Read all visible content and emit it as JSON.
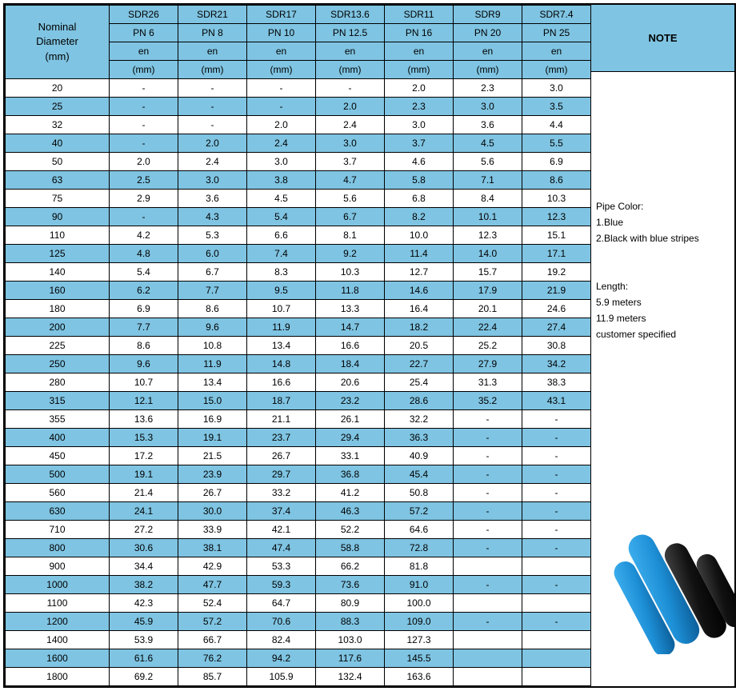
{
  "colors": {
    "header_bg": "#7fc4e2",
    "border": "#000000",
    "text": "#000000",
    "row_alt_bg": "#7fc4e2",
    "row_bg": "#ffffff"
  },
  "header": {
    "nominal_line1": "Nominal",
    "nominal_line2": "Diameter",
    "nominal_line3": "(mm)",
    "cols": [
      {
        "sdr": "SDR26",
        "pn": "PN 6",
        "en": "en",
        "unit": "(mm)"
      },
      {
        "sdr": "SDR21",
        "pn": "PN 8",
        "en": "en",
        "unit": "(mm)"
      },
      {
        "sdr": "SDR17",
        "pn": "PN 10",
        "en": "en",
        "unit": "(mm)"
      },
      {
        "sdr": "SDR13.6",
        "pn": "PN 12.5",
        "en": "en",
        "unit": "(mm)"
      },
      {
        "sdr": "SDR11",
        "pn": "PN 16",
        "en": "en",
        "unit": "(mm)"
      },
      {
        "sdr": "SDR9",
        "pn": "PN 20",
        "en": "en",
        "unit": "(mm)"
      },
      {
        "sdr": "SDR7.4",
        "pn": "PN 25",
        "en": "en",
        "unit": "(mm)"
      }
    ],
    "note_label": "NOTE"
  },
  "rows": [
    {
      "nom": "20",
      "v": [
        "-",
        "-",
        "-",
        "-",
        "2.0",
        "2.3",
        "3.0"
      ],
      "blue": false
    },
    {
      "nom": "25",
      "v": [
        "-",
        "-",
        "-",
        "2.0",
        "2.3",
        "3.0",
        "3.5"
      ],
      "blue": true
    },
    {
      "nom": "32",
      "v": [
        "-",
        "-",
        "2.0",
        "2.4",
        "3.0",
        "3.6",
        "4.4"
      ],
      "blue": false
    },
    {
      "nom": "40",
      "v": [
        "-",
        "2.0",
        "2.4",
        "3.0",
        "3.7",
        "4.5",
        "5.5"
      ],
      "blue": true
    },
    {
      "nom": "50",
      "v": [
        "2.0",
        "2.4",
        "3.0",
        "3.7",
        "4.6",
        "5.6",
        "6.9"
      ],
      "blue": false
    },
    {
      "nom": "63",
      "v": [
        "2.5",
        "3.0",
        "3.8",
        "4.7",
        "5.8",
        "7.1",
        "8.6"
      ],
      "blue": true
    },
    {
      "nom": "75",
      "v": [
        "2.9",
        "3.6",
        "4.5",
        "5.6",
        "6.8",
        "8.4",
        "10.3"
      ],
      "blue": false
    },
    {
      "nom": "90",
      "v": [
        "-",
        "4.3",
        "5.4",
        "6.7",
        "8.2",
        "10.1",
        "12.3"
      ],
      "blue": true
    },
    {
      "nom": "110",
      "v": [
        "4.2",
        "5.3",
        "6.6",
        "8.1",
        "10.0",
        "12.3",
        "15.1"
      ],
      "blue": false
    },
    {
      "nom": "125",
      "v": [
        "4.8",
        "6.0",
        "7.4",
        "9.2",
        "11.4",
        "14.0",
        "17.1"
      ],
      "blue": true
    },
    {
      "nom": "140",
      "v": [
        "5.4",
        "6.7",
        "8.3",
        "10.3",
        "12.7",
        "15.7",
        "19.2"
      ],
      "blue": false
    },
    {
      "nom": "160",
      "v": [
        "6.2",
        "7.7",
        "9.5",
        "11.8",
        "14.6",
        "17.9",
        "21.9"
      ],
      "blue": true
    },
    {
      "nom": "180",
      "v": [
        "6.9",
        "8.6",
        "10.7",
        "13.3",
        "16.4",
        "20.1",
        "24.6"
      ],
      "blue": false
    },
    {
      "nom": "200",
      "v": [
        "7.7",
        "9.6",
        "11.9",
        "14.7",
        "18.2",
        "22.4",
        "27.4"
      ],
      "blue": true
    },
    {
      "nom": "225",
      "v": [
        "8.6",
        "10.8",
        "13.4",
        "16.6",
        "20.5",
        "25.2",
        "30.8"
      ],
      "blue": false
    },
    {
      "nom": "250",
      "v": [
        "9.6",
        "11.9",
        "14.8",
        "18.4",
        "22.7",
        "27.9",
        "34.2"
      ],
      "blue": true
    },
    {
      "nom": "280",
      "v": [
        "10.7",
        "13.4",
        "16.6",
        "20.6",
        "25.4",
        "31.3",
        "38.3"
      ],
      "blue": false
    },
    {
      "nom": "315",
      "v": [
        "12.1",
        "15.0",
        "18.7",
        "23.2",
        "28.6",
        "35.2",
        "43.1"
      ],
      "blue": true
    },
    {
      "nom": "355",
      "v": [
        "13.6",
        "16.9",
        "21.1",
        "26.1",
        "32.2",
        "-",
        "-"
      ],
      "blue": false
    },
    {
      "nom": "400",
      "v": [
        "15.3",
        "19.1",
        "23.7",
        "29.4",
        "36.3",
        "-",
        "-"
      ],
      "blue": true
    },
    {
      "nom": "450",
      "v": [
        "17.2",
        "21.5",
        "26.7",
        "33.1",
        "40.9",
        "-",
        "-"
      ],
      "blue": false
    },
    {
      "nom": "500",
      "v": [
        "19.1",
        "23.9",
        "29.7",
        "36.8",
        "45.4",
        "-",
        "-"
      ],
      "blue": true
    },
    {
      "nom": "560",
      "v": [
        "21.4",
        "26.7",
        "33.2",
        "41.2",
        "50.8",
        "-",
        "-"
      ],
      "blue": false
    },
    {
      "nom": "630",
      "v": [
        "24.1",
        "30.0",
        "37.4",
        "46.3",
        "57.2",
        "-",
        "-"
      ],
      "blue": true
    },
    {
      "nom": "710",
      "v": [
        "27.2",
        "33.9",
        "42.1",
        "52.2",
        "64.6",
        "-",
        "-"
      ],
      "blue": false
    },
    {
      "nom": "800",
      "v": [
        "30.6",
        "38.1",
        "47.4",
        "58.8",
        "72.8",
        "-",
        "-"
      ],
      "blue": true
    },
    {
      "nom": "900",
      "v": [
        "34.4",
        "42.9",
        "53.3",
        "66.2",
        "81.8",
        "",
        ""
      ],
      "blue": false
    },
    {
      "nom": "1000",
      "v": [
        "38.2",
        "47.7",
        "59.3",
        "73.6",
        "91.0",
        "-",
        "-"
      ],
      "blue": true
    },
    {
      "nom": "1100",
      "v": [
        "42.3",
        "52.4",
        "64.7",
        "80.9",
        "100.0",
        "",
        ""
      ],
      "blue": false
    },
    {
      "nom": "1200",
      "v": [
        "45.9",
        "57.2",
        "70.6",
        "88.3",
        "109.0",
        "-",
        "-"
      ],
      "blue": true
    },
    {
      "nom": "1400",
      "v": [
        "53.9",
        "66.7",
        "82.4",
        "103.0",
        "127.3",
        "",
        ""
      ],
      "blue": false
    },
    {
      "nom": "1600",
      "v": [
        "61.6",
        "76.2",
        "94.2",
        "117.6",
        "145.5",
        "",
        ""
      ],
      "blue": true
    },
    {
      "nom": "1800",
      "v": [
        "69.2",
        "85.7",
        "105.9",
        "132.4",
        "163.6",
        "",
        ""
      ],
      "blue": false
    }
  ],
  "notes": {
    "pipe_color_hdr": "Pipe Color:",
    "pipe_color_1": "1.Blue",
    "pipe_color_2": "2.Black with blue stripes",
    "length_hdr": "Length:",
    "length_1": "5.9 meters",
    "length_2": "11.9 meters",
    "length_3": "customer specified"
  },
  "pipe_image": {
    "colors": {
      "blue_pipe": "#1d8fd6",
      "blue_pipe_dark": "#0b5a94",
      "black_pipe": "#111111"
    }
  }
}
